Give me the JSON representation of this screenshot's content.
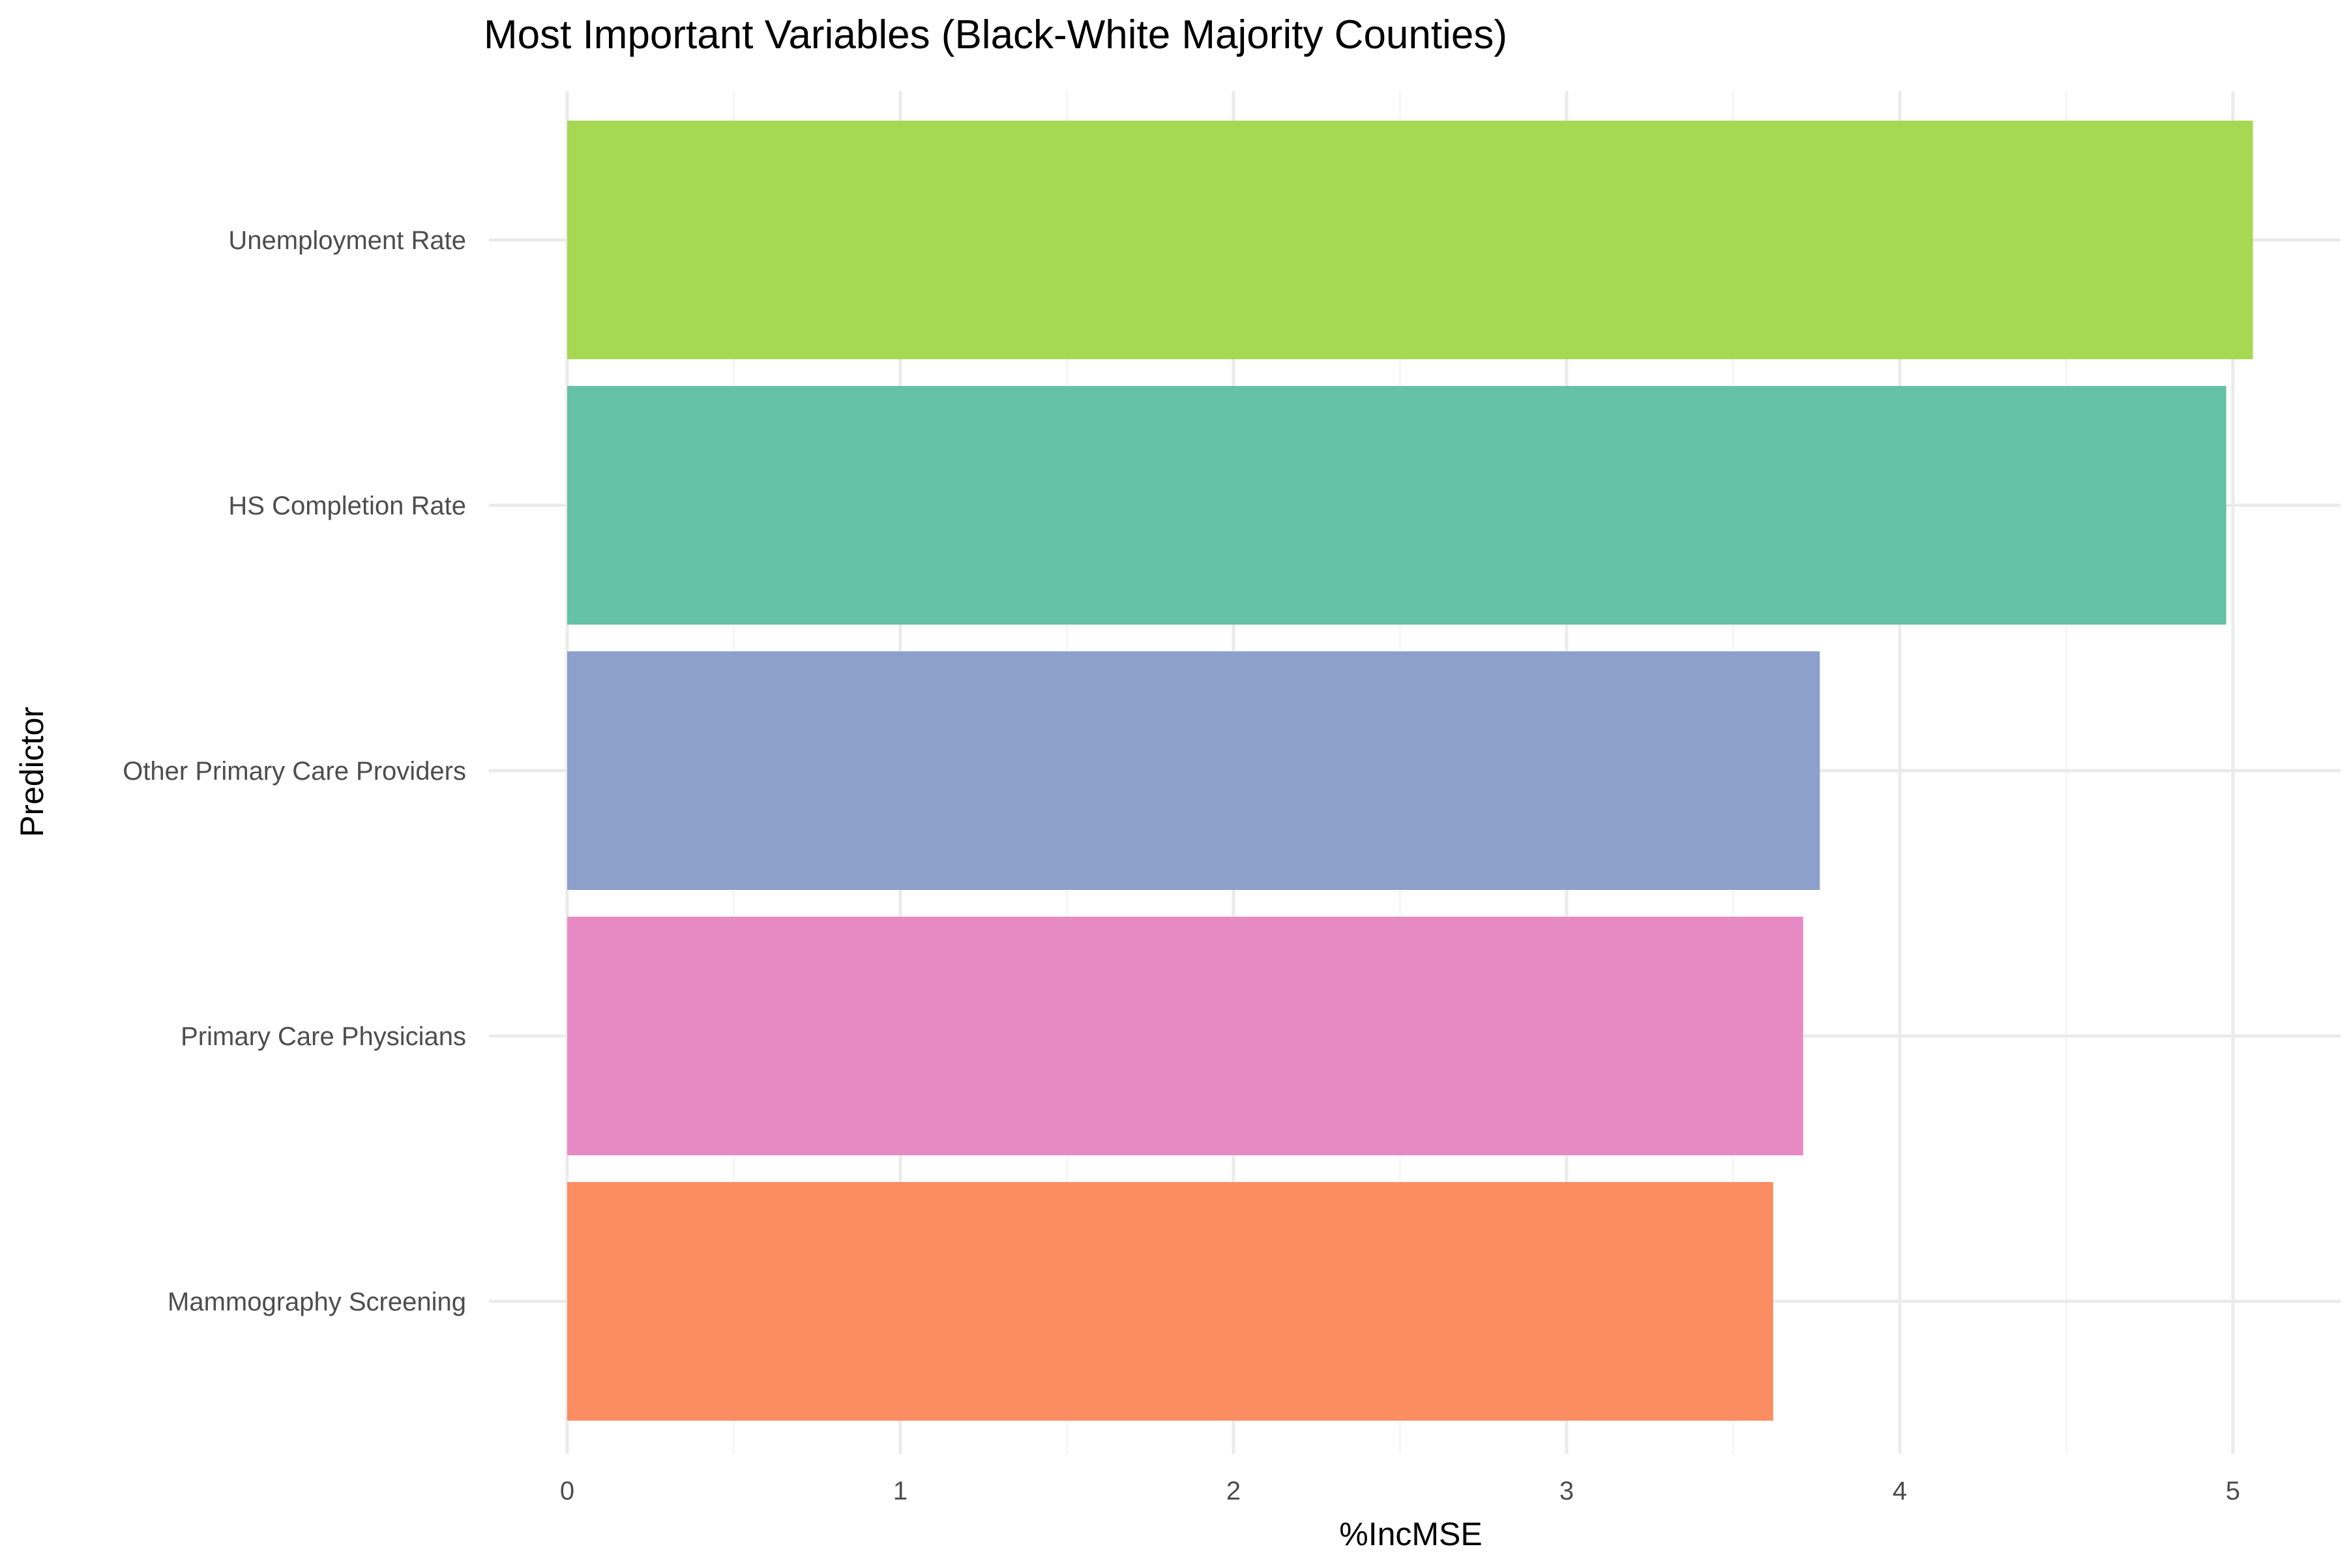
{
  "chart_data": {
    "type": "bar",
    "orientation": "horizontal",
    "title": "Most Important Variables (Black-White Majority Counties)",
    "xlabel": "%IncMSE",
    "ylabel": "Predictor",
    "xlim": [
      0,
      5.3
    ],
    "x_ticks": [
      0,
      1,
      2,
      3,
      4,
      5
    ],
    "x_tick_labels": [
      "0",
      "1",
      "2",
      "3",
      "4",
      "5"
    ],
    "grid": true,
    "legend": "none",
    "categories": [
      "Unemployment Rate",
      "HS Completion Rate",
      "Other Primary Care Providers",
      "Primary Care Physicians",
      "Mammography Screening"
    ],
    "values": [
      5.06,
      4.98,
      3.76,
      3.71,
      3.62
    ],
    "colors": [
      "#a6d854",
      "#66c2a5",
      "#8da0cb",
      "#e78ac3",
      "#fc8d62"
    ]
  }
}
